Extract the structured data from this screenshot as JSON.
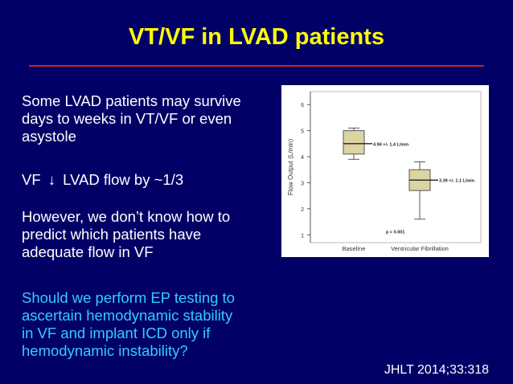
{
  "slide": {
    "title": "VT/VF in LVAD patients",
    "bullet1": [
      "Some LVAD patients may survive",
      "days to weeks in VT/VF or even",
      "asystole"
    ],
    "bullet2_prefix": "VF",
    "bullet2_arrow": "↓",
    "bullet2_suffix": "LVAD flow by ~1/3",
    "bullet3": [
      "However, we don’t know how to",
      "predict which patients have",
      "adequate flow in VF"
    ],
    "bullet4": [
      "Should we perform EP testing to",
      "ascertain hemodynamic stability",
      "in VF and implant ICD only if",
      "hemodynamic instability?"
    ],
    "citation": "JHLT 2014;33:318"
  },
  "colors": {
    "title": "#ffff00",
    "background": "#000066",
    "rule": "#cc2222",
    "question": "#33ccff",
    "box_fill": "#ddd4a4"
  },
  "chart_data": {
    "type": "box",
    "ylabel": "Flow Output (L/min)",
    "ylim": [
      0.7,
      6.5
    ],
    "yticks": [
      1,
      2,
      3,
      4,
      5,
      6
    ],
    "categories": [
      "Baseline",
      "Ventricular Fibrillation"
    ],
    "boxes": [
      {
        "category": "Baseline",
        "min": 3.9,
        "q1": 4.1,
        "median": 4.5,
        "q3": 5.0,
        "max": 5.1,
        "label": "4.94 +/- 1.4 L/min"
      },
      {
        "category": "Ventricular Fibrillation",
        "min": 1.6,
        "q1": 2.7,
        "median": 3.1,
        "q3": 3.5,
        "max": 3.8,
        "label": "3.39 +/- 1.1 L/min"
      }
    ],
    "annotation": "p < 0.001"
  }
}
